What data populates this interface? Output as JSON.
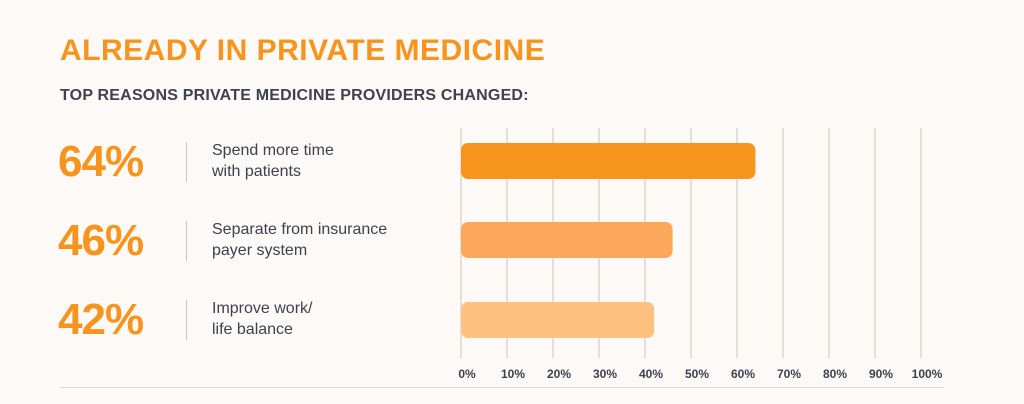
{
  "header": {
    "title": "ALREADY IN PRIVATE MEDICINE",
    "subtitle": "TOP REASONS PRIVATE MEDICINE PROVIDERS CHANGED:"
  },
  "rows": [
    {
      "percent_label": "64%",
      "label_line1": "Spend more time",
      "label_line2": "with patients"
    },
    {
      "percent_label": "46%",
      "label_line1": "Separate from insurance",
      "label_line2": "payer system"
    },
    {
      "percent_label": "42%",
      "label_line1": "Improve work/",
      "label_line2": "life balance"
    }
  ],
  "chart_data": {
    "type": "bar",
    "orientation": "horizontal",
    "categories": [
      "Spend more time with patients",
      "Separate from insurance payer system",
      "Improve work/life balance"
    ],
    "values": [
      64,
      46,
      42
    ],
    "xlim": [
      0,
      100
    ],
    "xticks": [
      0,
      10,
      20,
      30,
      40,
      50,
      60,
      70,
      80,
      90,
      100
    ],
    "xtick_labels": [
      "0%",
      "10%",
      "20%",
      "30%",
      "40%",
      "50%",
      "60%",
      "70%",
      "80%",
      "90%",
      "100%"
    ],
    "grid": true,
    "bar_colors": [
      "#f7941d",
      "#fba85a",
      "#fdc27f"
    ],
    "grid_color": "#e4dfd9"
  }
}
